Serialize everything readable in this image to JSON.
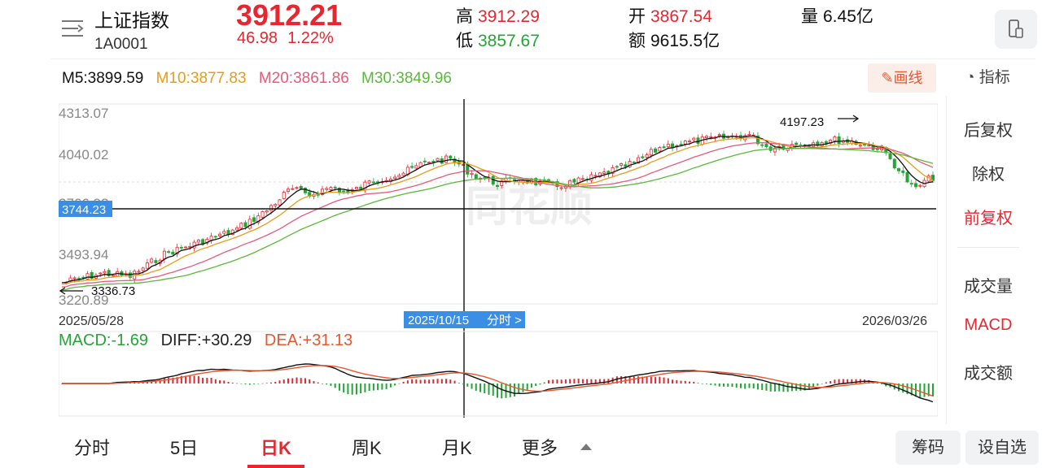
{
  "header": {
    "name": "上证指数",
    "code": "1A0001",
    "price": "3912.21",
    "change_abs": "46.98",
    "change_pct": "1.22%",
    "high_label": "高",
    "high": "3912.29",
    "low_label": "低",
    "low": "3857.67",
    "open_label": "开",
    "open": "3867.54",
    "amount_label": "额",
    "amount": "9615.5亿",
    "volume_label": "量",
    "volume": "6.45亿"
  },
  "ma": {
    "m5": "M5:3899.59",
    "m10": "M10:3877.83",
    "m20": "M20:3861.86",
    "m30": "M30:3849.96"
  },
  "toolbar": {
    "draw_label": "画线",
    "indicator_label": "指标"
  },
  "kline": {
    "y_ticks": [
      "4313.07",
      "4040.02",
      "3766.98",
      "3493.94",
      "3220.89"
    ],
    "crosshair_price": "3744.23",
    "crosshair_date": "2025/10/15",
    "fenshi_link": "分时 >",
    "start_date": "2025/05/28",
    "end_date": "2026/03/26",
    "max_label": "4197.23",
    "min_label": "3336.73",
    "watermark": "同花顺"
  },
  "macd": {
    "macd": "MACD:-1.69",
    "diff": "DIFF:+30.29",
    "dea": "DEA:+31.13"
  },
  "side": {
    "items": [
      "后复权",
      "除权",
      "前复权",
      "成交量",
      "MACD",
      "成交额"
    ]
  },
  "tabs": [
    "分时",
    "5日",
    "日K",
    "周K",
    "月K",
    "更多"
  ],
  "buttons": {
    "chips": "筹码",
    "watchlist": "设自选"
  },
  "colors": {
    "up": "#e8262f",
    "down": "#25a437",
    "m5": "#111111",
    "m10": "#e89c1a",
    "m20": "#e85a7a",
    "m30": "#5cb83c"
  }
}
